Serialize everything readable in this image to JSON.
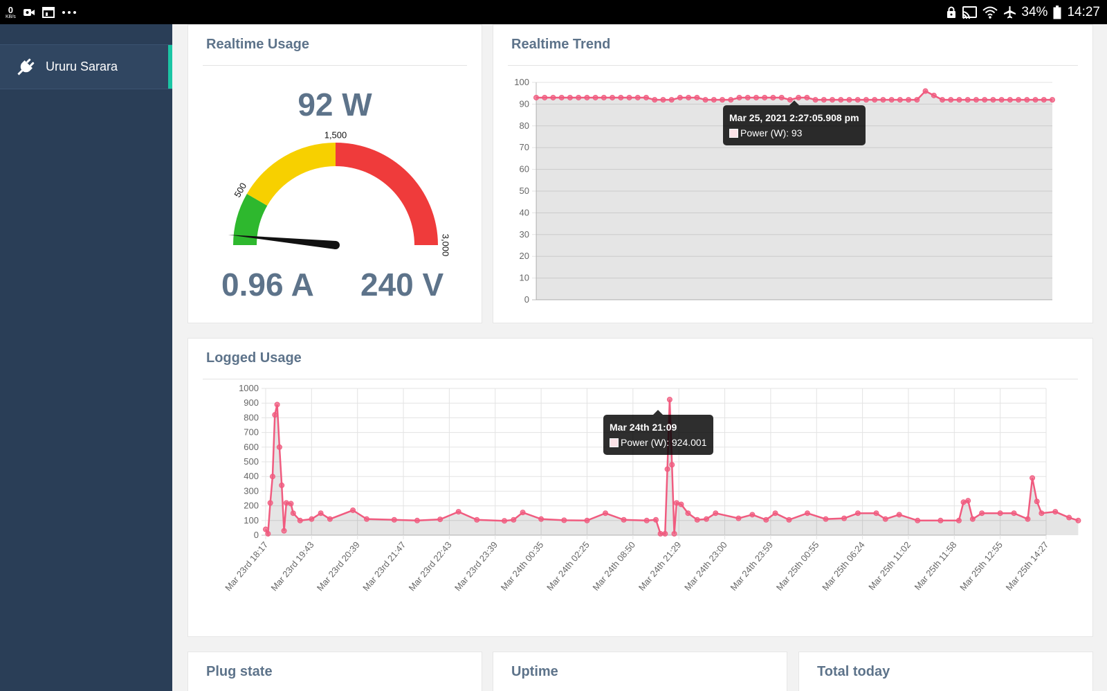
{
  "status_bar": {
    "net_speed": "0",
    "net_unit": "KB/s",
    "battery": "34%",
    "time": "14:27"
  },
  "sidebar": {
    "items": [
      {
        "label": "Ururu Sarara",
        "icon": "plug-icon",
        "active": true
      }
    ]
  },
  "realtime_usage": {
    "title": "Realtime Usage",
    "power": "92 W",
    "current": "0.96 A",
    "voltage": "240 V",
    "gauge": {
      "min": 0,
      "max": 3000,
      "value": 92,
      "ticks": [
        "500",
        "1,500",
        "3,000"
      ],
      "bands": [
        {
          "from": 0,
          "to": 500,
          "color": "#2eb82e"
        },
        {
          "from": 500,
          "to": 1500,
          "color": "#f7d000"
        },
        {
          "from": 1500,
          "to": 3000,
          "color": "#ef3b3b"
        }
      ]
    }
  },
  "realtime_trend": {
    "title": "Realtime Trend",
    "tooltip": {
      "title": "Mar 25, 2021 2:27:05.908 pm",
      "label": "Power (W): 93"
    },
    "chart_data": {
      "type": "line",
      "ylim": [
        0,
        100
      ],
      "yticks": [
        "0",
        "10",
        "20",
        "30",
        "40",
        "50",
        "60",
        "70",
        "80",
        "90",
        "100"
      ],
      "series": [
        {
          "name": "Power (W)",
          "color": "#f05b7f",
          "values": [
            93,
            93,
            93,
            93,
            93,
            93,
            93,
            93,
            93,
            93,
            93,
            93,
            93,
            93,
            92,
            92,
            92,
            93,
            93,
            93,
            92,
            92,
            92,
            92,
            93,
            93,
            93,
            93,
            93,
            93,
            92,
            93,
            93,
            92,
            92,
            92,
            92,
            92,
            92,
            92,
            92,
            92,
            92,
            92,
            92,
            92,
            96,
            94,
            92,
            92,
            92,
            92,
            92,
            92,
            92,
            92,
            92,
            92,
            92,
            92,
            92,
            92
          ]
        }
      ]
    }
  },
  "logged_usage": {
    "title": "Logged Usage",
    "tooltip": {
      "title": "Mar 24th 21:09",
      "label": "Power (W): 924.001"
    },
    "chart_data": {
      "type": "line",
      "ylim": [
        0,
        1000
      ],
      "yticks": [
        "0",
        "100",
        "200",
        "300",
        "400",
        "500",
        "600",
        "700",
        "800",
        "900",
        "1000"
      ],
      "categories": [
        "Mar 23rd 18:17",
        "Mar 23rd 19:43",
        "Mar 23rd 20:39",
        "Mar 23rd 21:47",
        "Mar 23rd 22:43",
        "Mar 23rd 23:39",
        "Mar 24th 00:35",
        "Mar 24th 02:25",
        "Mar 24th 08:50",
        "Mar 24th 21:29",
        "Mar 24th 23:00",
        "Mar 24th 23:59",
        "Mar 25th 00:55",
        "Mar 25th 06:24",
        "Mar 25th 11:02",
        "Mar 25th 11:58",
        "Mar 25th 12:55",
        "Mar 25th 14:27"
      ],
      "series": [
        {
          "name": "Power (W)",
          "color": "#f05b7f",
          "points": [
            [
              0,
              40
            ],
            [
              0.05,
              10
            ],
            [
              0.1,
              220
            ],
            [
              0.15,
              400
            ],
            [
              0.2,
              820
            ],
            [
              0.25,
              890
            ],
            [
              0.3,
              600
            ],
            [
              0.35,
              340
            ],
            [
              0.4,
              30
            ],
            [
              0.45,
              220
            ],
            [
              0.55,
              215
            ],
            [
              0.6,
              150
            ],
            [
              0.75,
              100
            ],
            [
              1.0,
              110
            ],
            [
              1.2,
              150
            ],
            [
              1.4,
              110
            ],
            [
              1.9,
              170
            ],
            [
              2.2,
              110
            ],
            [
              2.8,
              105
            ],
            [
              3.3,
              100
            ],
            [
              3.8,
              108
            ],
            [
              4.2,
              160
            ],
            [
              4.6,
              105
            ],
            [
              5.2,
              98
            ],
            [
              5.4,
              105
            ],
            [
              5.6,
              155
            ],
            [
              6.0,
              110
            ],
            [
              6.5,
              102
            ],
            [
              7.0,
              100
            ],
            [
              7.4,
              150
            ],
            [
              7.8,
              105
            ],
            [
              8.3,
              100
            ],
            [
              8.5,
              105
            ],
            [
              8.6,
              10
            ],
            [
              8.7,
              10
            ],
            [
              8.75,
              450
            ],
            [
              8.8,
              924
            ],
            [
              8.85,
              480
            ],
            [
              8.9,
              10
            ],
            [
              8.95,
              220
            ],
            [
              9.05,
              210
            ],
            [
              9.2,
              150
            ],
            [
              9.4,
              105
            ],
            [
              9.6,
              110
            ],
            [
              9.8,
              150
            ],
            [
              10.3,
              115
            ],
            [
              10.6,
              140
            ],
            [
              10.9,
              105
            ],
            [
              11.1,
              150
            ],
            [
              11.4,
              105
            ],
            [
              11.8,
              150
            ],
            [
              12.2,
              110
            ],
            [
              12.6,
              115
            ],
            [
              12.9,
              150
            ],
            [
              13.3,
              150
            ],
            [
              13.5,
              110
            ],
            [
              13.8,
              140
            ],
            [
              14.2,
              100
            ],
            [
              14.7,
              100
            ],
            [
              15.1,
              100
            ],
            [
              15.2,
              225
            ],
            [
              15.3,
              235
            ],
            [
              15.4,
              110
            ],
            [
              15.6,
              150
            ],
            [
              16.0,
              150
            ],
            [
              16.3,
              150
            ],
            [
              16.6,
              110
            ],
            [
              16.7,
              390
            ],
            [
              16.8,
              230
            ],
            [
              16.9,
              150
            ],
            [
              17.2,
              160
            ],
            [
              17.5,
              120
            ],
            [
              17.7,
              100
            ]
          ]
        }
      ]
    }
  },
  "bottom_cards": {
    "plug_state": {
      "title": "Plug state"
    },
    "uptime": {
      "title": "Uptime"
    },
    "total_today": {
      "title": "Total today"
    }
  }
}
